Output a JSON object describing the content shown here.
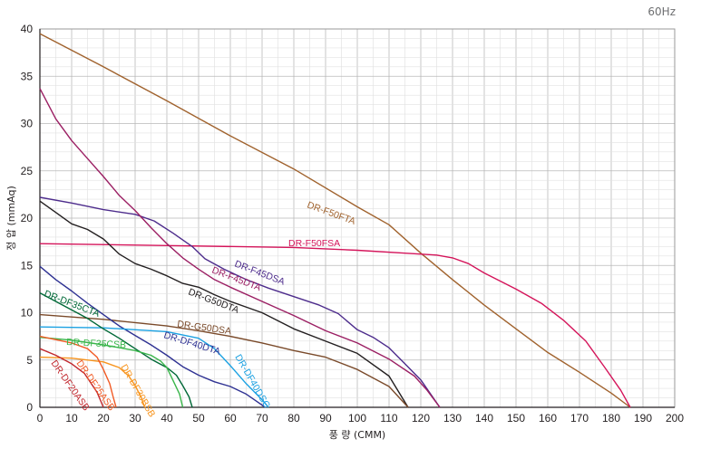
{
  "corner_label": "60Hz",
  "chart_data": {
    "type": "line",
    "xlabel": "풍 량 (CMM)",
    "ylabel": "정 압 (mmAq)",
    "xlim": [
      0,
      200
    ],
    "ylim": [
      0,
      40
    ],
    "xticks": [
      0,
      10,
      20,
      30,
      40,
      50,
      60,
      70,
      80,
      90,
      100,
      110,
      120,
      130,
      140,
      150,
      160,
      170,
      180,
      190,
      200
    ],
    "yticks": [
      0,
      5,
      10,
      15,
      20,
      25,
      30,
      35,
      40
    ],
    "grid": true,
    "series": [
      {
        "name": "DR-F50FTA",
        "color": "#a0622d",
        "points": [
          [
            0,
            39.5
          ],
          [
            20,
            36
          ],
          [
            40,
            32.4
          ],
          [
            60,
            28.7
          ],
          [
            80,
            25.2
          ],
          [
            100,
            21.2
          ],
          [
            110,
            19.3
          ],
          [
            120,
            16.3
          ],
          [
            130,
            13.5
          ],
          [
            140,
            10.8
          ],
          [
            150,
            8.3
          ],
          [
            160,
            5.8
          ],
          [
            170,
            3.7
          ],
          [
            180,
            1.5
          ],
          [
            186,
            0
          ]
        ]
      },
      {
        "name": "DR-F50FSA",
        "color": "#d4145a",
        "points": [
          [
            0,
            17.3
          ],
          [
            40,
            17.1
          ],
          [
            80,
            16.9
          ],
          [
            100,
            16.6
          ],
          [
            115,
            16.3
          ],
          [
            125,
            16.1
          ],
          [
            130,
            15.8
          ],
          [
            135,
            15.2
          ],
          [
            140,
            14.2
          ],
          [
            150,
            12.5
          ],
          [
            158,
            11
          ],
          [
            165,
            9.2
          ],
          [
            172,
            7.0
          ],
          [
            178,
            4.2
          ],
          [
            183,
            1.8
          ],
          [
            186,
            0
          ]
        ]
      },
      {
        "name": "DR-F45DSA",
        "color": "#4d2c8c",
        "points": [
          [
            0,
            22.2
          ],
          [
            10,
            21.6
          ],
          [
            20,
            20.9
          ],
          [
            30,
            20.4
          ],
          [
            36,
            19.7
          ],
          [
            42,
            18.4
          ],
          [
            48,
            17
          ],
          [
            52,
            15.7
          ],
          [
            58,
            14.6
          ],
          [
            65,
            13.5
          ],
          [
            72,
            12.6
          ],
          [
            80,
            11.7
          ],
          [
            88,
            10.8
          ],
          [
            94,
            9.9
          ],
          [
            100,
            8.2
          ],
          [
            105,
            7.4
          ],
          [
            110,
            6.3
          ],
          [
            115,
            4.6
          ],
          [
            120,
            2.9
          ],
          [
            126,
            0
          ]
        ]
      },
      {
        "name": "DR-F45DTA",
        "color": "#9b1f63",
        "points": [
          [
            0,
            33.7
          ],
          [
            5,
            30.5
          ],
          [
            10,
            28.2
          ],
          [
            15,
            26.3
          ],
          [
            20,
            24.4
          ],
          [
            25,
            22.4
          ],
          [
            30,
            20.8
          ],
          [
            35,
            19
          ],
          [
            40,
            17.3
          ],
          [
            45,
            15.8
          ],
          [
            50,
            14.6
          ],
          [
            55,
            13.5
          ],
          [
            60,
            12.7
          ],
          [
            70,
            11.2
          ],
          [
            80,
            9.7
          ],
          [
            90,
            8.1
          ],
          [
            100,
            6.8
          ],
          [
            110,
            5.1
          ],
          [
            118,
            3.3
          ],
          [
            122,
            1.8
          ],
          [
            126,
            0
          ]
        ]
      },
      {
        "name": "DR-G50DTA",
        "color": "#231f20",
        "points": [
          [
            0,
            21.8
          ],
          [
            5,
            20.6
          ],
          [
            10,
            19.4
          ],
          [
            15,
            18.8
          ],
          [
            20,
            17.8
          ],
          [
            25,
            16.2
          ],
          [
            30,
            15.2
          ],
          [
            35,
            14.6
          ],
          [
            40,
            13.9
          ],
          [
            45,
            13.1
          ],
          [
            50,
            12.7
          ],
          [
            55,
            11.9
          ],
          [
            60,
            11.2
          ],
          [
            70,
            10
          ],
          [
            80,
            8.3
          ],
          [
            90,
            7.0
          ],
          [
            100,
            5.7
          ],
          [
            110,
            3.3
          ],
          [
            116,
            0
          ]
        ]
      },
      {
        "name": "DR-G50DSA",
        "color": "#7a4a2a",
        "points": [
          [
            0,
            9.8
          ],
          [
            20,
            9.3
          ],
          [
            40,
            8.6
          ],
          [
            50,
            8.1
          ],
          [
            60,
            7.5
          ],
          [
            70,
            6.8
          ],
          [
            80,
            6.0
          ],
          [
            90,
            5.3
          ],
          [
            100,
            4.0
          ],
          [
            110,
            2.2
          ],
          [
            116,
            0
          ]
        ]
      },
      {
        "name": "DR-DF40DTA",
        "color": "#2e3192",
        "points": [
          [
            0,
            14.9
          ],
          [
            5,
            13.5
          ],
          [
            10,
            12.3
          ],
          [
            15,
            11.0
          ],
          [
            20,
            9.8
          ],
          [
            25,
            8.6
          ],
          [
            30,
            7.6
          ],
          [
            35,
            6.6
          ],
          [
            40,
            5.5
          ],
          [
            45,
            4.3
          ],
          [
            50,
            3.4
          ],
          [
            55,
            2.7
          ],
          [
            60,
            2.2
          ],
          [
            65,
            1.4
          ],
          [
            68,
            0.7
          ],
          [
            71,
            0
          ]
        ]
      },
      {
        "name": "DR-DF40DSC",
        "color": "#1ba1e2",
        "points": [
          [
            0,
            8.5
          ],
          [
            20,
            8.4
          ],
          [
            40,
            8.0
          ],
          [
            50,
            7.3
          ],
          [
            55,
            6.2
          ],
          [
            60,
            4.4
          ],
          [
            65,
            2.5
          ],
          [
            70,
            0.8
          ],
          [
            72,
            0
          ]
        ]
      },
      {
        "name": "DR-DF35CTA",
        "color": "#006837",
        "points": [
          [
            0,
            12.1
          ],
          [
            5,
            11.2
          ],
          [
            10,
            10.3
          ],
          [
            15,
            9.4
          ],
          [
            20,
            8.3
          ],
          [
            25,
            7.3
          ],
          [
            30,
            6.2
          ],
          [
            35,
            5.1
          ],
          [
            40,
            4.2
          ],
          [
            43,
            3.4
          ],
          [
            45,
            2.3
          ],
          [
            47,
            1.1
          ],
          [
            48,
            0
          ]
        ]
      },
      {
        "name": "DR-DF35CSB",
        "color": "#39b54a",
        "points": [
          [
            0,
            7.4
          ],
          [
            10,
            7.1
          ],
          [
            20,
            6.6
          ],
          [
            30,
            6.0
          ],
          [
            35,
            5.5
          ],
          [
            38,
            4.9
          ],
          [
            40,
            4.2
          ],
          [
            42,
            2.8
          ],
          [
            44,
            1.4
          ],
          [
            45,
            0
          ]
        ]
      },
      {
        "name": "DR-DF30BSB",
        "color": "#f7941d",
        "points": [
          [
            0,
            5.3
          ],
          [
            10,
            5.2
          ],
          [
            20,
            4.8
          ],
          [
            25,
            4.2
          ],
          [
            28,
            3.3
          ],
          [
            30,
            2.3
          ],
          [
            32,
            1.0
          ],
          [
            33,
            0
          ]
        ]
      },
      {
        "name": "DR-DF25ASB",
        "color": "#f15a24",
        "points": [
          [
            0,
            7.5
          ],
          [
            10,
            6.8
          ],
          [
            15,
            6.2
          ],
          [
            18,
            5.3
          ],
          [
            20,
            4.0
          ],
          [
            22,
            2.5
          ],
          [
            23,
            1.2
          ],
          [
            24,
            0
          ]
        ]
      },
      {
        "name": "DR-DF20ASB",
        "color": "#c1272d",
        "points": [
          [
            0,
            6.2
          ],
          [
            5,
            5.5
          ],
          [
            10,
            4.6
          ],
          [
            14,
            3.6
          ],
          [
            16,
            2.6
          ],
          [
            18,
            1.6
          ],
          [
            19,
            0.8
          ],
          [
            20,
            0
          ]
        ]
      }
    ]
  }
}
